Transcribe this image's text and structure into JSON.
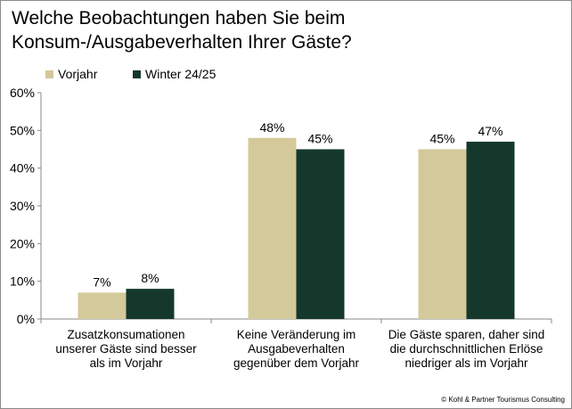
{
  "chart_data": {
    "type": "bar",
    "title_lines": [
      "Welche Beobachtungen haben Sie beim",
      "Konsum-/Ausgabeverhalten Ihrer Gäste?"
    ],
    "categories": [
      [
        "Zusatzkonsumationen",
        "unserer Gäste sind besser",
        "als im Vorjahr"
      ],
      [
        "Keine Veränderung im",
        "Ausgabeverhalten",
        "gegenüber dem Vorjahr"
      ],
      [
        "Die Gäste sparen, daher sind",
        "die durchschnittlichen Erlöse",
        "niedriger als im Vorjahr"
      ]
    ],
    "series": [
      {
        "name": "Vorjahr",
        "color": "#d4c99a",
        "values": [
          7,
          48,
          45
        ]
      },
      {
        "name": "Winter 24/25",
        "color": "#15382c",
        "values": [
          8,
          45,
          47
        ]
      }
    ],
    "ylim": [
      0,
      60
    ],
    "yticks": [
      0,
      10,
      20,
      30,
      40,
      50,
      60
    ],
    "ytick_suffix": "%",
    "data_label_suffix": "%",
    "legend_position": "top-left",
    "grid": false
  },
  "footer": {
    "copyright": "© Kohl & Partner Tourismus Consulting"
  }
}
